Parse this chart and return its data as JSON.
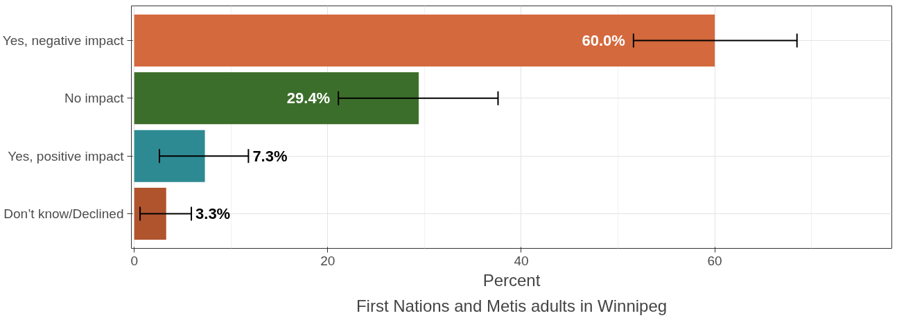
{
  "chart_data": {
    "type": "bar",
    "orientation": "horizontal",
    "xlabel": "Percent",
    "categories": [
      "Yes, negative impact",
      "No impact",
      "Yes, positive impact",
      "Don’t know/Declined"
    ],
    "values": [
      60.0,
      29.4,
      7.3,
      3.3
    ],
    "colors": [
      "#d4693d",
      "#3c6e2b",
      "#2e8a92",
      "#b0542e"
    ],
    "errors": [
      [
        51.6,
        68.5
      ],
      [
        21.1,
        37.6
      ],
      [
        2.6,
        11.8
      ],
      [
        0.6,
        5.9
      ]
    ],
    "value_labels": [
      "60.0%",
      "29.4%",
      "7.3%",
      "3.3%"
    ],
    "xlim": [
      -0.3,
      78.3
    ],
    "xticks": [
      0,
      20,
      40,
      60
    ],
    "grid": true,
    "annotations": [
      "First Nations and Metis adults in Winnipeg"
    ]
  }
}
